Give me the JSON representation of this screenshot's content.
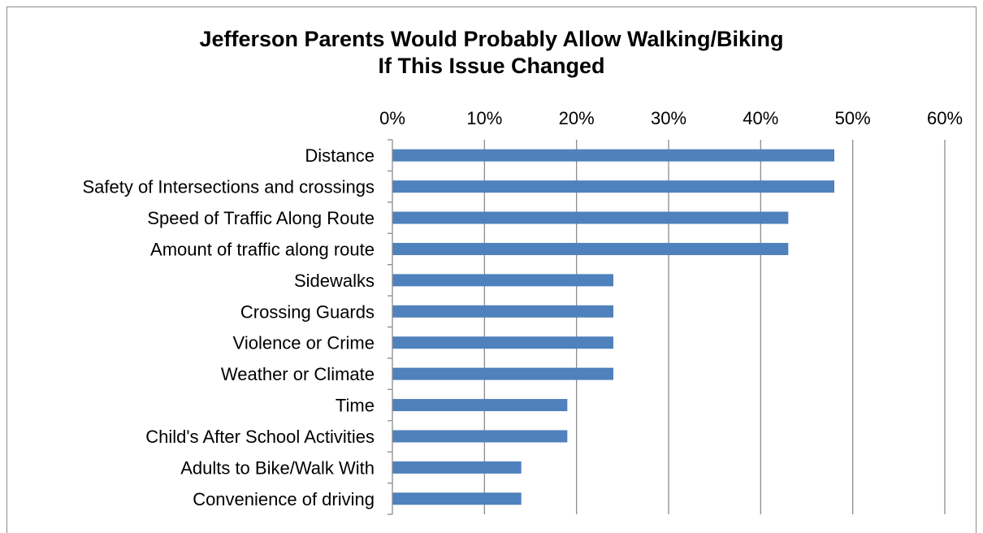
{
  "chart_data": {
    "type": "bar",
    "orientation": "horizontal",
    "title_line1": "Jefferson Parents Would Probably Allow Walking/Biking",
    "title_line2": "If This Issue Changed",
    "categories": [
      "Distance",
      "Safety of Intersections and crossings",
      "Speed of Traffic Along Route",
      "Amount of traffic along route",
      "Sidewalks",
      "Crossing Guards",
      "Violence or Crime",
      "Weather or Climate",
      "Time",
      "Child's After School Activities",
      "Adults to Bike/Walk With",
      "Convenience of driving"
    ],
    "values": [
      48,
      48,
      43,
      43,
      24,
      24,
      24,
      24,
      19,
      19,
      14,
      14
    ],
    "x_ticks": [
      "0%",
      "10%",
      "20%",
      "30%",
      "40%",
      "50%",
      "60%"
    ],
    "xlim": [
      0,
      60
    ],
    "x_axis_position": "top",
    "grid": true,
    "legend": "none",
    "bar_color": "#4f81bd",
    "grid_color": "#8c8c8c"
  }
}
